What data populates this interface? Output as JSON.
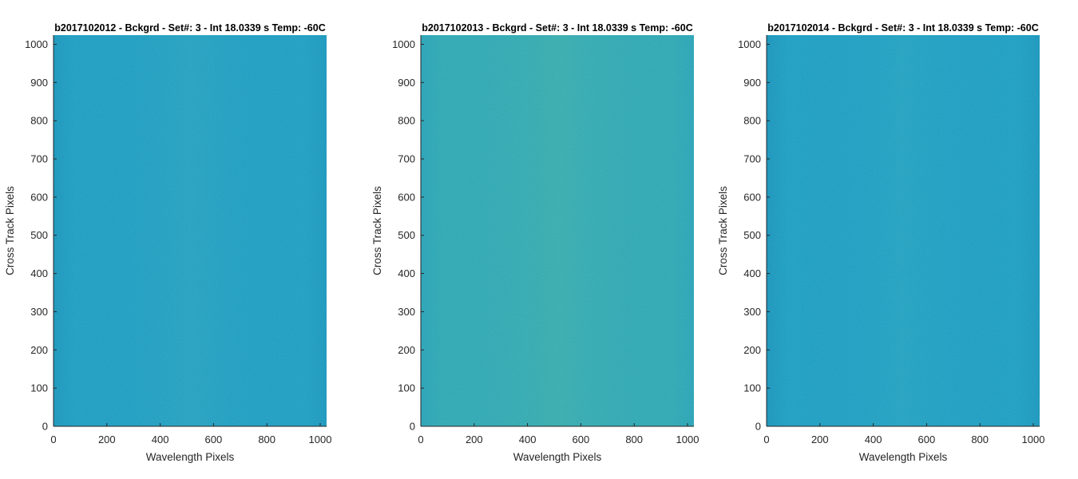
{
  "chart_data": [
    {
      "type": "heatmap",
      "title": "b2017102012 - Bckgrd - Set#: 3 - Int 18.0339 s Temp: -60C",
      "xlabel": "Wavelength Pixels",
      "ylabel": "Cross Track Pixels",
      "xlim": [
        0,
        1024
      ],
      "ylim": [
        0,
        1024
      ],
      "xticks": [
        0,
        200,
        400,
        600,
        800,
        1000
      ],
      "yticks": [
        0,
        100,
        200,
        300,
        400,
        500,
        600,
        700,
        800,
        900,
        1000
      ],
      "grid": false,
      "colors": {
        "base": "#159fc6",
        "noise": "#2aa9be",
        "edge": "#0e8fb8"
      }
    },
    {
      "type": "heatmap",
      "title": "b2017102013 - Bckgrd - Set#: 3 - Int 18.0339 s Temp: -60C",
      "xlabel": "Wavelength Pixels",
      "ylabel": "Cross Track Pixels",
      "xlim": [
        0,
        1024
      ],
      "ylim": [
        0,
        1024
      ],
      "xticks": [
        0,
        200,
        400,
        600,
        800,
        1000
      ],
      "yticks": [
        0,
        100,
        200,
        300,
        400,
        500,
        600,
        700,
        800,
        900,
        1000
      ],
      "grid": false,
      "colors": {
        "base": "#27aab5",
        "noise": "#46b7a6",
        "edge": "#1a9fbd"
      }
    },
    {
      "type": "heatmap",
      "title": "b2017102014 - Bckgrd - Set#: 3 - Int 18.0339 s Temp: -60C",
      "xlabel": "Wavelength Pixels",
      "ylabel": "Cross Track Pixels",
      "xlim": [
        0,
        1024
      ],
      "ylim": [
        0,
        1024
      ],
      "xticks": [
        0,
        200,
        400,
        600,
        800,
        1000
      ],
      "yticks": [
        0,
        100,
        200,
        300,
        400,
        500,
        600,
        700,
        800,
        900,
        1000
      ],
      "grid": false,
      "colors": {
        "base": "#14a0c7",
        "noise": "#26a8bf",
        "edge": "#0d8cb6"
      }
    }
  ]
}
